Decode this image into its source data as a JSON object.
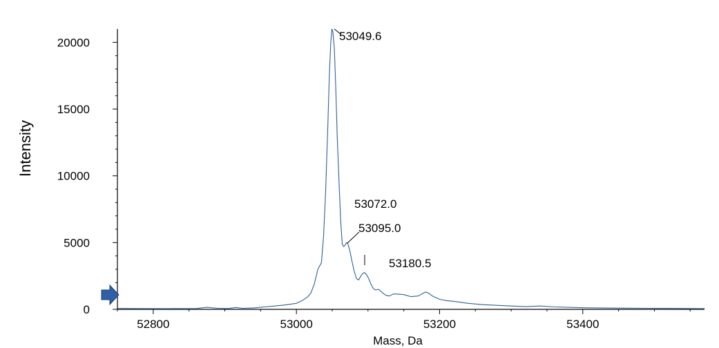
{
  "chart_data": {
    "type": "line",
    "title": "",
    "xlabel": "Mass, Da",
    "ylabel": "Intensity",
    "xlim": [
      52750,
      53570
    ],
    "ylim": [
      0,
      21000
    ],
    "x_ticks": [
      52800,
      53000,
      53200,
      53400
    ],
    "y_ticks": [
      0,
      5000,
      10000,
      15000,
      20000
    ],
    "grid": false,
    "legend": "none",
    "line_color": "#2f5d99",
    "series": [
      {
        "x": [
          52750,
          52780,
          52820,
          52860,
          52875,
          52890,
          52905,
          52915,
          52925,
          52940,
          52955,
          52970,
          52985,
          53000,
          53008,
          53015,
          53020,
          53025,
          53030,
          53035,
          53038,
          53041,
          53044,
          53046,
          53048,
          53049.6,
          53051,
          53053,
          53055,
          53057,
          53060,
          53062,
          53064,
          53066,
          53068,
          53070,
          53072,
          53075,
          53078,
          53081,
          53084,
          53087,
          53090,
          53093,
          53095,
          53098,
          53101,
          53104,
          53107,
          53110,
          53115,
          53120,
          53125,
          53130,
          53135,
          53140,
          53150,
          53160,
          53170,
          53175,
          53180.5,
          53185,
          53190,
          53200,
          53210,
          53220,
          53240,
          53260,
          53280,
          53300,
          53320,
          53340,
          53360,
          53380,
          53400,
          53430,
          53460,
          53490,
          53520,
          53550,
          53570
        ],
        "y": [
          60,
          55,
          50,
          60,
          150,
          80,
          60,
          140,
          80,
          110,
          180,
          250,
          330,
          450,
          650,
          900,
          1200,
          1900,
          3000,
          3500,
          5500,
          9000,
          14000,
          17500,
          20000,
          21000,
          20800,
          19500,
          16500,
          13000,
          9000,
          6500,
          4900,
          4700,
          4800,
          5000,
          4900,
          4300,
          3500,
          2800,
          2300,
          2200,
          2500,
          2700,
          2750,
          2600,
          2300,
          1900,
          1600,
          1450,
          1500,
          1250,
          1050,
          1000,
          1150,
          1150,
          1100,
          950,
          1000,
          1150,
          1300,
          1200,
          1000,
          750,
          650,
          600,
          450,
          350,
          300,
          250,
          200,
          250,
          180,
          150,
          120,
          100,
          90,
          80,
          70,
          60,
          55
        ]
      }
    ],
    "annotations": [
      {
        "text": "53049.6",
        "x": 53049.6
      },
      {
        "text": "53072.0",
        "x": 53072.0
      },
      {
        "text": "53095.0",
        "x": 53095.0
      },
      {
        "text": "53180.5",
        "x": 53180.5
      }
    ]
  }
}
